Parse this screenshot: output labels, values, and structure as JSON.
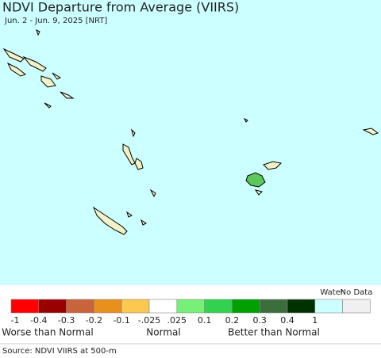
{
  "header": {
    "title": "NDVI Departure from Average (VIIRS)",
    "subtitle": "Jun. 2 - Jun. 9, 2025 [NRT]"
  },
  "legend": {
    "colors": [
      "#ff0000",
      "#990000",
      "#c8643c",
      "#e8901e",
      "#fcc850",
      "#ffffff",
      "#78f078",
      "#32d250",
      "#00a000",
      "#3c6e3c",
      "#003200"
    ],
    "tick_labels": [
      "-1",
      "-0.4",
      "-0.3",
      "-0.2",
      "-0.1",
      "-.025",
      ".025",
      "0.1",
      "0.2",
      "0.3",
      "0.4",
      "1"
    ],
    "extra": [
      {
        "label": "Water",
        "color": "#ccffff"
      },
      {
        "label": "No Data",
        "color": "#f0f0f0"
      }
    ],
    "categories": [
      "Worse than Normal",
      "Normal",
      "Better than Normal"
    ]
  },
  "footer": {
    "source": "Source: NDVI VIIRS at 500-m"
  }
}
